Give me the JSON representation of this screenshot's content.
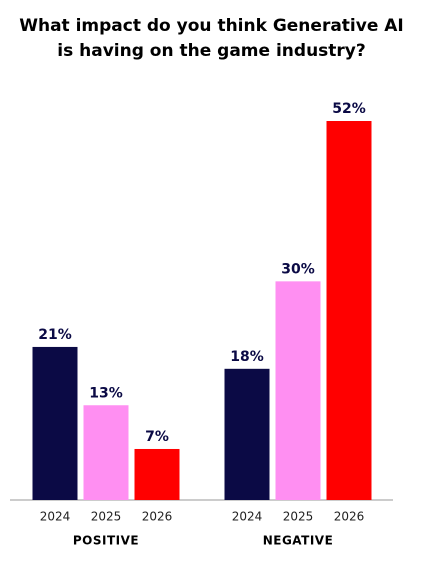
{
  "chart_data": {
    "type": "bar",
    "title": "What impact do you think Generative AI is having on the game industry?",
    "categories": [
      "POSITIVE",
      "NEGATIVE"
    ],
    "series": [
      {
        "name": "2024",
        "color": "#0b0a45",
        "values": [
          21,
          18
        ],
        "value_labels": [
          "21%",
          "18%"
        ]
      },
      {
        "name": "2025",
        "color": "#ff8ff2",
        "values": [
          13,
          30
        ],
        "value_labels": [
          "13%",
          "30%"
        ]
      },
      {
        "name": "2026",
        "color": "#ff0000",
        "values": [
          7,
          52
        ],
        "value_labels": [
          "7%",
          "52%"
        ]
      }
    ]
  }
}
